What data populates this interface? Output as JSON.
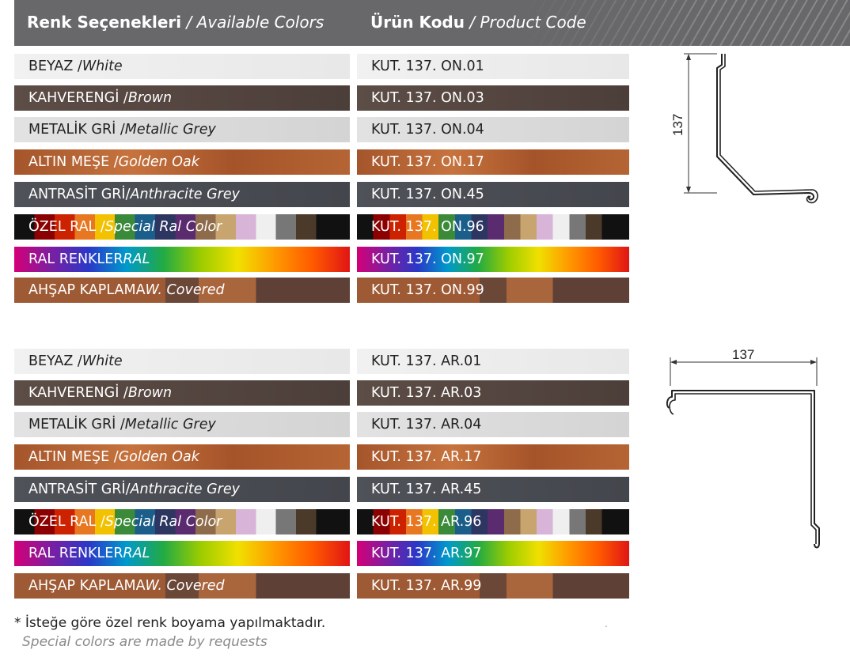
{
  "header": {
    "col1_tr": "Renk Seçenekleri",
    "col1_en": " / Available Colors",
    "col2_tr": "Ürün Kodu",
    "col2_en": " / Product Code"
  },
  "colors": [
    {
      "tr": "BEYAZ /",
      "en": "White",
      "swatch": "white"
    },
    {
      "tr": "KAHVERENGİ /",
      "en": "Brown",
      "swatch": "brown"
    },
    {
      "tr": "METALİK GRİ /",
      "en": "Metallic Grey",
      "swatch": "metallic-grey"
    },
    {
      "tr": "ALTIN MEŞE /",
      "en": "Golden Oak",
      "swatch": "golden-oak"
    },
    {
      "tr": "ANTRASİT GRİ/",
      "en": "Anthracite Grey",
      "swatch": "anthracite-grey"
    },
    {
      "tr": "ÖZEL RAL /",
      "en": "Special Ral Color",
      "swatch": "special-ral"
    },
    {
      "tr": "RAL RENKLER ",
      "en": "RAL",
      "swatch": "ral-rainbow"
    },
    {
      "tr": "AHŞAP KAPLAMA ",
      "en": "W. Covered",
      "swatch": "wood-covered"
    }
  ],
  "codes_on": [
    "KUT. 137. ON.01",
    "KUT. 137. ON.03",
    "KUT. 137. ON.04",
    "KUT. 137. ON.17",
    "KUT. 137. ON.45",
    "KUT. 137. ON.96",
    "KUT. 137. ON.97",
    "KUT. 137. ON.99"
  ],
  "codes_ar": [
    "KUT. 137. AR.01",
    "KUT. 137. AR.03",
    "KUT. 137. AR.04",
    "KUT. 137. AR.17",
    "KUT. 137. AR.45",
    "KUT. 137. AR.96",
    "KUT. 137. AR.97",
    "KUT. 137. AR.99"
  ],
  "profiles": {
    "on": {
      "dimension": "137"
    },
    "ar": {
      "dimension": "137"
    }
  },
  "notes": {
    "tr": "* İsteğe göre özel renk boyama yapılmaktadır.",
    "en": "Special colors are made by requests",
    "dot": "."
  }
}
